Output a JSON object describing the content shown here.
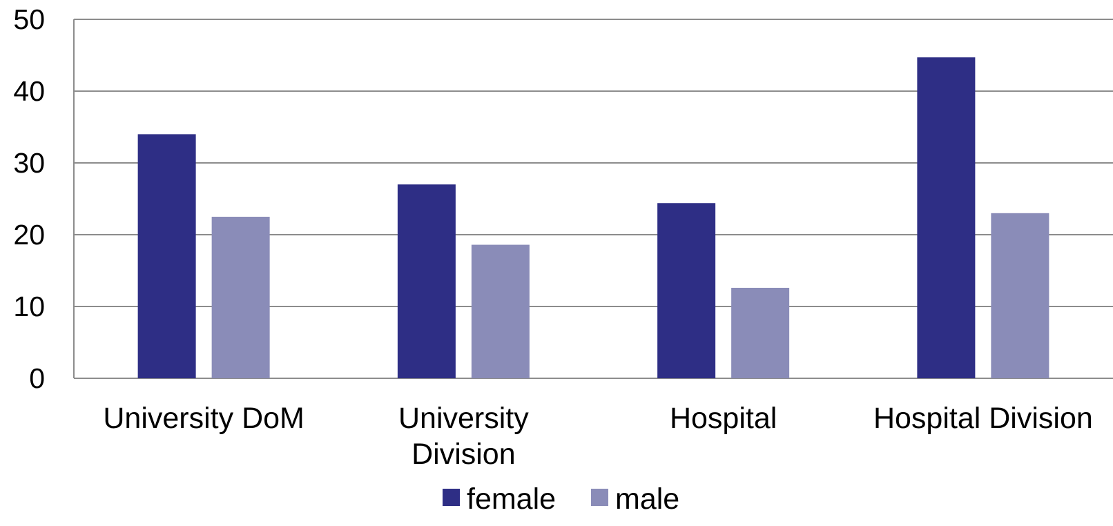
{
  "chart_data": {
    "type": "bar",
    "title": "",
    "xlabel": "",
    "ylabel": "",
    "categories": [
      [
        "University DoM"
      ],
      [
        "University",
        "Division"
      ],
      [
        "Hospital"
      ],
      [
        "Hospital Division"
      ]
    ],
    "series": [
      {
        "name": "female",
        "color": "#2e2e85",
        "values": [
          34,
          27,
          24.4,
          44.7
        ]
      },
      {
        "name": "male",
        "color": "#8a8cb8",
        "values": [
          22.5,
          18.6,
          12.6,
          23
        ]
      }
    ],
    "ylim": [
      0,
      50
    ],
    "yticks": [
      "0",
      "10",
      "20",
      "30",
      "40",
      "50"
    ],
    "grid": true,
    "gridColor": "#8c8c8c",
    "legend": {
      "position": "bottom"
    }
  }
}
